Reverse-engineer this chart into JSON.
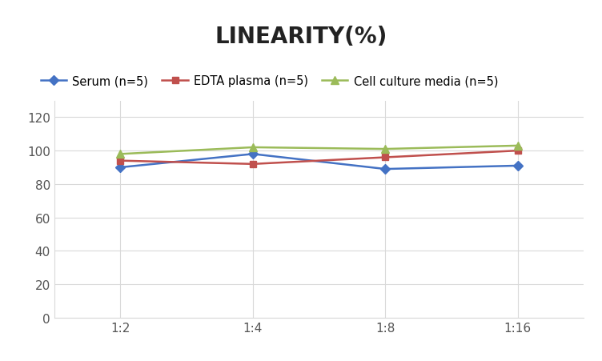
{
  "title": "LINEARITY(%)",
  "x_labels": [
    "1:2",
    "1:4",
    "1:8",
    "1:16"
  ],
  "x_positions": [
    0,
    1,
    2,
    3
  ],
  "series": [
    {
      "label": "Serum (n=5)",
      "values": [
        90,
        98,
        89,
        91
      ],
      "color": "#4472C4",
      "marker": "D",
      "marker_size": 6,
      "linewidth": 1.8
    },
    {
      "label": "EDTA plasma (n=5)",
      "values": [
        94,
        92,
        96,
        100
      ],
      "color": "#C0504D",
      "marker": "s",
      "marker_size": 6,
      "linewidth": 1.8
    },
    {
      "label": "Cell culture media (n=5)",
      "values": [
        98,
        102,
        101,
        103
      ],
      "color": "#9BBB59",
      "marker": "^",
      "marker_size": 7,
      "linewidth": 1.8
    }
  ],
  "ylim": [
    0,
    130
  ],
  "yticks": [
    0,
    20,
    40,
    60,
    80,
    100,
    120
  ],
  "grid_color": "#D9D9D9",
  "background_color": "#FFFFFF",
  "title_fontsize": 20,
  "legend_fontsize": 10.5,
  "tick_fontsize": 11
}
